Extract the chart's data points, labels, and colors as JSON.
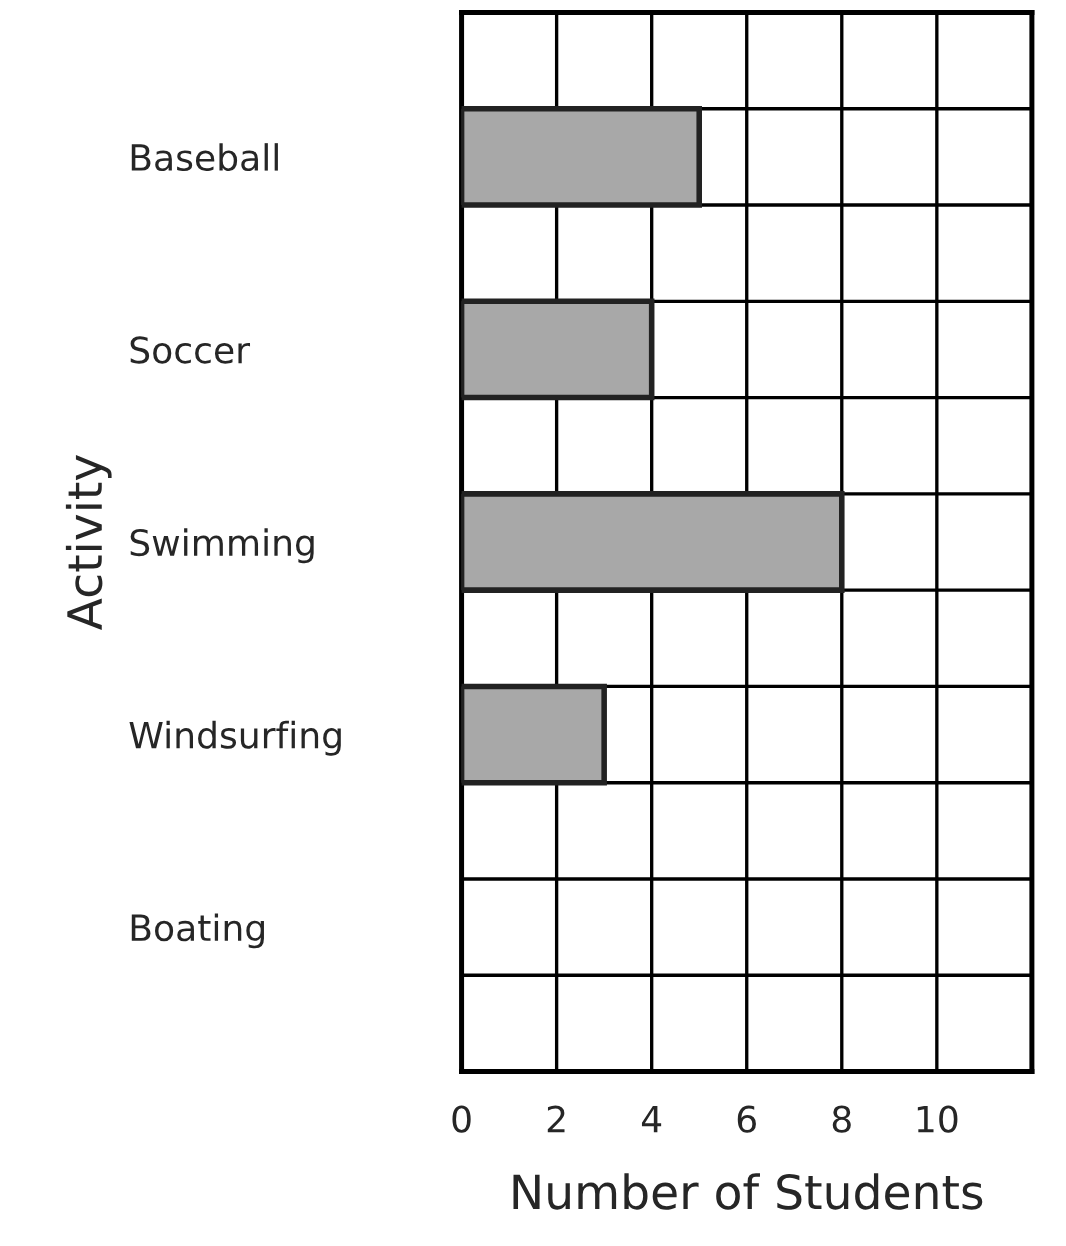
{
  "chart_data": {
    "type": "bar",
    "orientation": "horizontal",
    "xlabel": "Number of Students",
    "ylabel": "Activity",
    "categories": [
      "Baseball",
      "Soccer",
      "Swimming",
      "Windsurfing",
      "Boating"
    ],
    "values": [
      5,
      4,
      8,
      3,
      0
    ],
    "color": "#a8a8a8",
    "xlim": [
      0,
      12
    ],
    "xticks": [
      0,
      2,
      4,
      6,
      8,
      10
    ],
    "grid": true
  }
}
